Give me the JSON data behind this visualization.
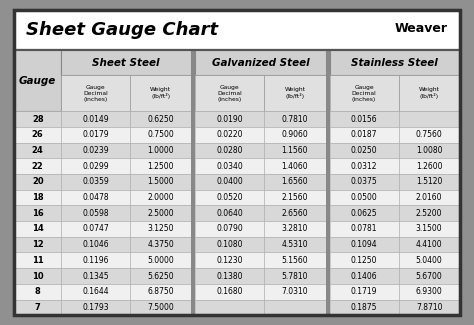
{
  "title": "Sheet Gauge Chart",
  "bg_outer": "#909090",
  "bg_title": "#ffffff",
  "bg_table": "#f0f0f0",
  "border_color": "#444444",
  "divider_color": "#666666",
  "cell_border": "#aaaaaa",
  "header1_bg": "#d0d0d0",
  "header2_bg": "#e0e0e0",
  "row_bg_dark": "#d8d8d8",
  "row_bg_light": "#f0f0f0",
  "gauges": [
    28,
    26,
    24,
    22,
    20,
    18,
    16,
    14,
    12,
    11,
    10,
    8,
    7
  ],
  "sheet_steel_decimal": [
    "0.0149",
    "0.0179",
    "0.0239",
    "0.0299",
    "0.0359",
    "0.0478",
    "0.0598",
    "0.0747",
    "0.1046",
    "0.1196",
    "0.1345",
    "0.1644",
    "0.1793"
  ],
  "sheet_steel_weight": [
    "0.6250",
    "0.7500",
    "1.0000",
    "1.2500",
    "1.5000",
    "2.0000",
    "2.5000",
    "3.1250",
    "4.3750",
    "5.0000",
    "5.6250",
    "6.8750",
    "7.5000"
  ],
  "galvanized_decimal": [
    "0.0190",
    "0.0220",
    "0.0280",
    "0.0340",
    "0.0400",
    "0.0520",
    "0.0640",
    "0.0790",
    "0.1080",
    "0.1230",
    "0.1380",
    "0.1680",
    ""
  ],
  "galvanized_weight": [
    "0.7810",
    "0.9060",
    "1.1560",
    "1.4060",
    "1.6560",
    "2.1560",
    "2.6560",
    "3.2810",
    "4.5310",
    "5.1560",
    "5.7810",
    "7.0310",
    ""
  ],
  "stainless_decimal": [
    "0.0156",
    "0.0187",
    "0.0250",
    "0.0312",
    "0.0375",
    "0.0500",
    "0.0625",
    "0.0781",
    "0.1094",
    "0.1250",
    "0.1406",
    "0.1719",
    "0.1875"
  ],
  "stainless_weight": [
    "",
    "0.7560",
    "1.0080",
    "1.2600",
    "1.5120",
    "2.0160",
    "2.5200",
    "3.1500",
    "4.4100",
    "5.0400",
    "5.6700",
    "6.9300",
    "7.8710"
  ],
  "figsize": [
    4.74,
    3.25
  ],
  "dpi": 100
}
